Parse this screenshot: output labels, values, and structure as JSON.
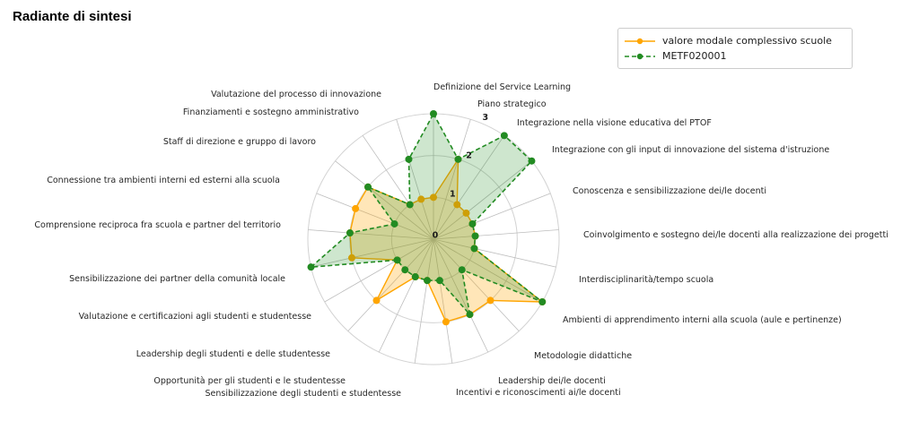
{
  "page": {
    "title": "Radiante di sintesi"
  },
  "legend": {
    "items": [
      {
        "label": "valore modale complessivo scuole",
        "color": "#FFA500",
        "style": "solid"
      },
      {
        "label": "METF020001",
        "color": "#228B22",
        "style": "dashed"
      }
    ]
  },
  "chart_data": {
    "type": "radar",
    "title": "Radiante di sintesi",
    "categories": [
      "Definizione del Service Learning",
      "Piano strategico",
      "Integrazione nella visione educativa del PTOF",
      "Integrazione con gli input di innovazione del sistema d'istruzione",
      "Conoscenza e sensibilizzazione dei/le docenti",
      "Coinvolgimento e sostegno dei/le docenti alla realizzazione dei progetti",
      "Interdisciplinarità/tempo scuola",
      "Ambienti di apprendimento interni alla scuola (aule e pertinenze)",
      "Metodologie didattiche",
      "Leadership dei/le docenti",
      "Incentivi e riconoscimenti ai/le docenti",
      "Sensibilizzazione degli studenti e studentesse",
      "Opportunità per gli studenti e le studentesse",
      "Leadership degli studenti e delle studentesse",
      "Valutazione e certificazioni agli studenti e studentesse",
      "Sensibilizzazione dei partner della comunità locale",
      "Comprensione reciproca fra scuola e partner del territorio",
      "Connessione tra ambienti interni ed esterni alla scuola",
      "Staff di direzione e gruppo di lavoro",
      "Finanziamenti e sostegno amministrativo",
      "Valutazione del processo di innovazione"
    ],
    "series": [
      {
        "name": "valore modale complessivo scuole",
        "color": "#FFA500",
        "style": "solid",
        "values": [
          1,
          2,
          1,
          1,
          1,
          1,
          1,
          3,
          2,
          2,
          2,
          1,
          1,
          2,
          1,
          2,
          2,
          2,
          2,
          1,
          1
        ]
      },
      {
        "name": "METF020001",
        "color": "#228B22",
        "style": "dashed",
        "values": [
          3,
          2,
          3,
          3,
          1,
          1,
          1,
          3,
          1,
          2,
          1,
          1,
          1,
          1,
          1,
          3,
          2,
          1,
          2,
          1,
          2
        ]
      }
    ],
    "rlim": [
      0,
      3
    ],
    "rticks": [
      0,
      1,
      2,
      3
    ],
    "grid": true,
    "legend_position": "top-right"
  }
}
